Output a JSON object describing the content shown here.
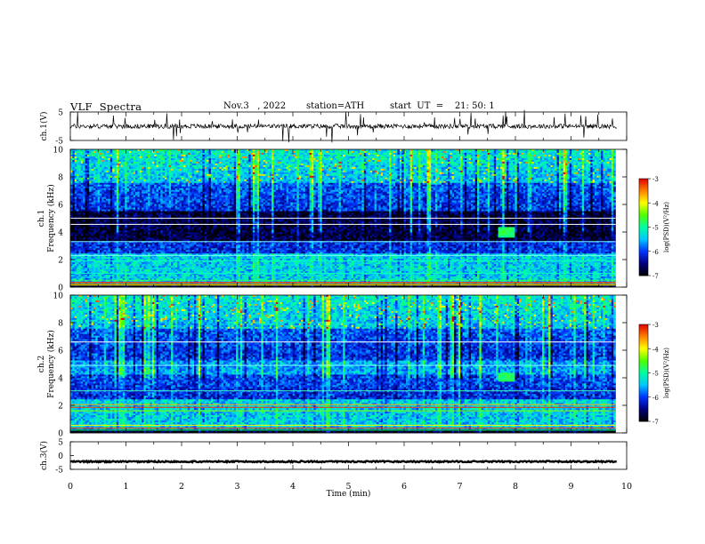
{
  "header": {
    "title": "VLF  Spectra",
    "date": "Nov.3   , 2022",
    "station": "station=ATH",
    "start": "start  UT  =    21: 50: 1"
  },
  "colors": {
    "colormap": [
      "#000000",
      "#00007f",
      "#0033ff",
      "#00c8ff",
      "#00ffa0",
      "#50ff00",
      "#ffff00",
      "#ff8000",
      "#e00000",
      "#ffffff"
    ],
    "trace": "#000000",
    "axis": "#000000"
  },
  "chart_data": [
    {
      "type": "line",
      "panel": "ch1-waveform",
      "ylabel": "ch.1(V)",
      "ylim": [
        -5,
        5
      ],
      "yticks": [
        "5",
        "-5"
      ],
      "xlim": [
        0,
        10
      ],
      "series": [
        {
          "values_desc": "noise around 0 V with frequent spikes"
        }
      ],
      "level": 0
    },
    {
      "type": "heatmap",
      "panel": "ch1-spectrogram",
      "ylabel_line1": "ch.1",
      "ylabel_line2": "Frequency  (kHz)",
      "ylim": [
        0,
        10
      ],
      "yticks": [
        "0",
        "2",
        "4",
        "6",
        "8",
        "10"
      ],
      "xlim": [
        0,
        10
      ],
      "data_extent_min": 9.8,
      "colorbar": {
        "label": "log(PSD)(V²/Hz)",
        "range": [
          -7,
          -3
        ],
        "ticks": [
          "-3",
          "-4",
          "-5",
          "-6",
          "-7"
        ]
      },
      "features": [
        {
          "desc": "strong noise band 8-10 kHz",
          "fmin": 7.5,
          "fmax": 10,
          "log_psd": -5.2
        },
        {
          "desc": "quiet band",
          "fmin": 3.5,
          "fmax": 5,
          "log_psd": -6.8
        },
        {
          "desc": "burst",
          "t": [
            7.7,
            8.0
          ],
          "fmin": 3.6,
          "fmax": 4.4,
          "log_psd": -4.8
        }
      ]
    },
    {
      "type": "heatmap",
      "panel": "ch2-spectrogram",
      "ylabel_line1": "ch.2",
      "ylabel_line2": "Frequency  (kHz)",
      "ylim": [
        0,
        10
      ],
      "yticks": [
        "0",
        "2",
        "4",
        "6",
        "8",
        "10"
      ],
      "xlim": [
        0,
        10
      ],
      "data_extent_min": 9.8,
      "colorbar": {
        "label": "log(PSD)(V²/Hz)",
        "range": [
          -7,
          -3
        ],
        "ticks": [
          "-3",
          "-4",
          "-5",
          "-6",
          "-7"
        ]
      },
      "features": [
        {
          "desc": "strong noise band 7-10 kHz",
          "fmin": 7,
          "fmax": 10,
          "log_psd": -5.3
        },
        {
          "desc": "lines near 2 kHz",
          "fmin": 1.8,
          "fmax": 2.2,
          "log_psd": -4.2
        },
        {
          "desc": "burst",
          "t": [
            7.7,
            8.0
          ],
          "fmin": 3.7,
          "fmax": 4.3,
          "log_psd": -4.8
        }
      ]
    },
    {
      "type": "line",
      "panel": "ch3-waveform",
      "ylabel": "ch.3(V)",
      "ylim": [
        -5,
        5
      ],
      "yticks": [
        "5",
        "0",
        "-5"
      ],
      "xlim": [
        0,
        10
      ],
      "xlabel": "Time  (min)",
      "xticks": [
        "0",
        "1",
        "2",
        "3",
        "4",
        "5",
        "6",
        "7",
        "8",
        "9",
        "10"
      ],
      "level": -2.2
    }
  ]
}
